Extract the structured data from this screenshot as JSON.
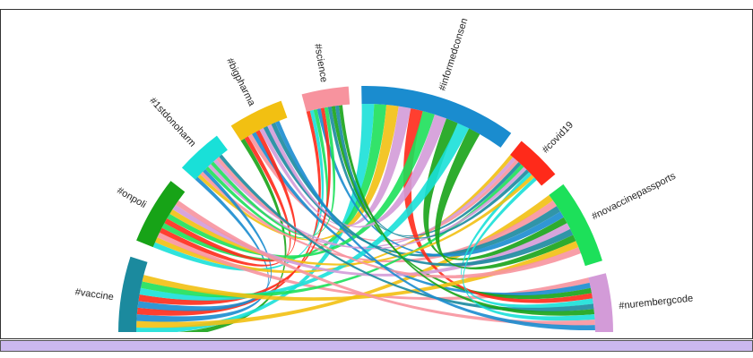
{
  "nodes": [
    {
      "label": "#vaccine",
      "color": "#1b8a9e"
    },
    {
      "label": "#onpoli",
      "color": "#17a317"
    },
    {
      "label": "#1stdonoharm",
      "color": "#19e0d8"
    },
    {
      "label": "#bigpharma",
      "color": "#f2c012"
    },
    {
      "label": "#science",
      "color": "#f7939e"
    },
    {
      "label": "#informedconsen",
      "color": "#1a8ccf"
    },
    {
      "label": "#covid19",
      "color": "#ff2a1a"
    },
    {
      "label": "#novaccinepassports",
      "color": "#1de05a"
    },
    {
      "label": "#nurembergcode",
      "color": "#d39bd8"
    }
  ]
}
